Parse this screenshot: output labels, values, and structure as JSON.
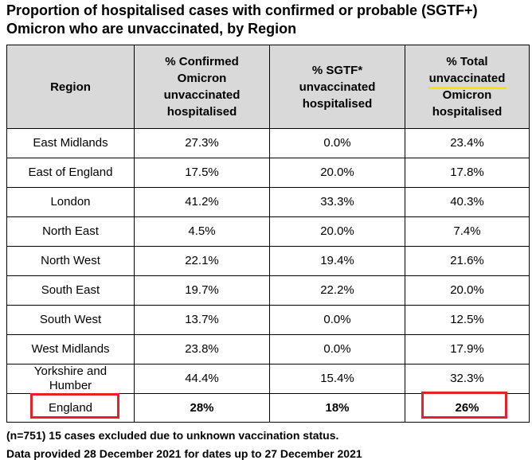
{
  "title": {
    "line1": "Proportion of hospitalised cases with confirmed or probable (SGTF+)",
    "line2": "Omicron who are unvaccinated, by Region"
  },
  "table": {
    "headers": {
      "region": "Region",
      "confirmed": [
        "% Confirmed",
        "Omicron",
        "unvaccinated",
        "hospitalised"
      ],
      "sgtf": [
        "% SGTF*",
        "unvaccinated",
        "hospitalised"
      ],
      "total_line1": "% Total",
      "total_highlight": "unvaccinated",
      "total_line3": "Omicron",
      "total_line4": "hospitalised"
    },
    "rows": [
      {
        "region": "East Midlands",
        "confirmed": "27.3%",
        "sgtf": "0.0%",
        "total": "23.4%"
      },
      {
        "region": "East of England",
        "confirmed": "17.5%",
        "sgtf": "20.0%",
        "total": "17.8%"
      },
      {
        "region": "London",
        "confirmed": "41.2%",
        "sgtf": "33.3%",
        "total": "40.3%"
      },
      {
        "region": "North East",
        "confirmed": "4.5%",
        "sgtf": "20.0%",
        "total": "7.4%"
      },
      {
        "region": "North West",
        "confirmed": "22.1%",
        "sgtf": "19.4%",
        "total": "21.6%"
      },
      {
        "region": "South East",
        "confirmed": "19.7%",
        "sgtf": "22.2%",
        "total": "20.0%"
      },
      {
        "region": "South West",
        "confirmed": "13.7%",
        "sgtf": "0.0%",
        "total": "12.5%"
      },
      {
        "region": "West Midlands",
        "confirmed": "23.8%",
        "sgtf": "0.0%",
        "total": "17.9%"
      },
      {
        "region_line1": "Yorkshire and",
        "region_line2": "Humber",
        "confirmed": "44.4%",
        "sgtf": "15.4%",
        "total": "32.3%"
      }
    ],
    "total_row": {
      "region": "England",
      "confirmed": "28%",
      "sgtf": "18%",
      "total": "26%"
    }
  },
  "notes": {
    "line1": "(n=751) 15 cases excluded due to unknown vaccination status.",
    "line2": "Data provided 28 December 2021 for dates up to 27 December 2021"
  },
  "colors": {
    "highlight_underline": "#f2e600",
    "annotation_box": "#e8202a",
    "header_bg": "#d9d9d9"
  }
}
